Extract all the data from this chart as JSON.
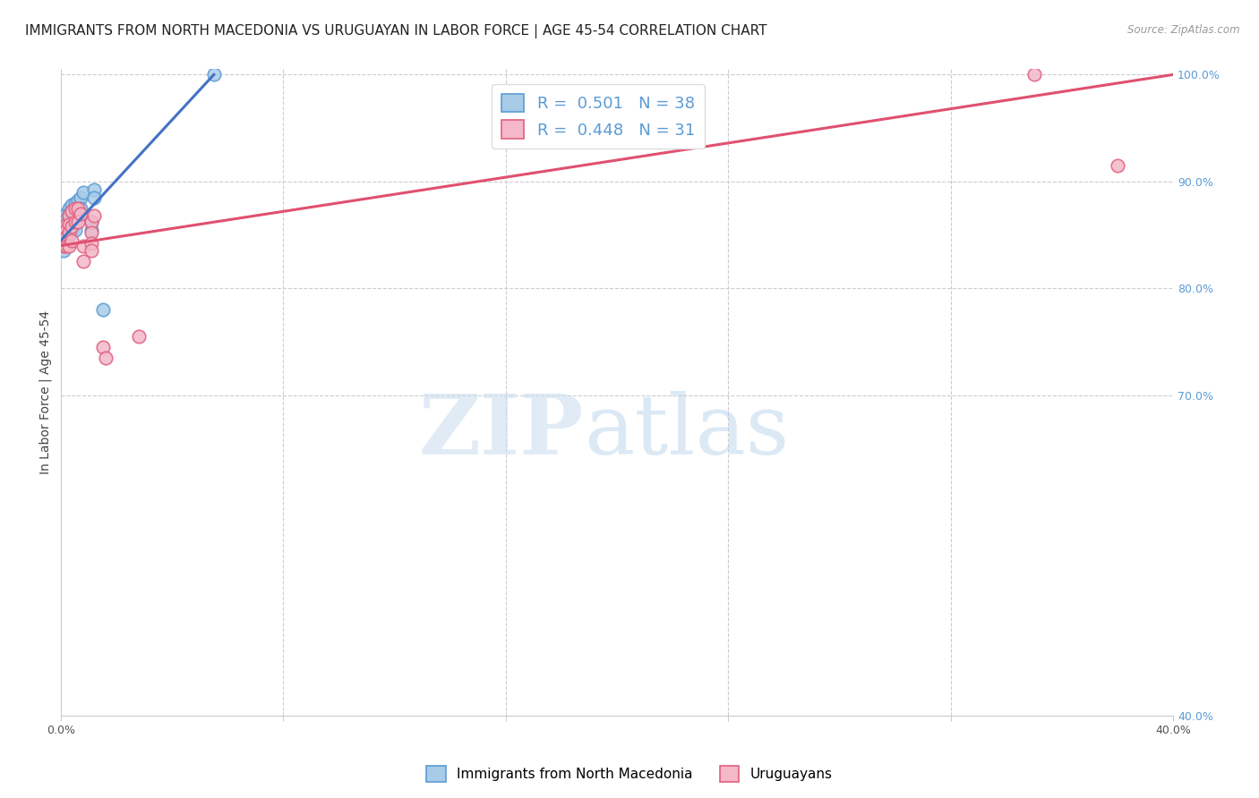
{
  "title": "IMMIGRANTS FROM NORTH MACEDONIA VS URUGUAYAN IN LABOR FORCE | AGE 45-54 CORRELATION CHART",
  "source": "Source: ZipAtlas.com",
  "ylabel": "In Labor Force | Age 45-54",
  "xlim": [
    0.0,
    0.4
  ],
  "ylim": [
    0.4,
    1.005
  ],
  "xticks": [
    0.0,
    0.08,
    0.16,
    0.24,
    0.32,
    0.4
  ],
  "xticklabels": [
    "0.0%",
    "",
    "",
    "",
    "",
    "40.0%"
  ],
  "yticks": [
    0.4,
    0.7,
    0.8,
    0.9,
    1.0
  ],
  "yticklabels": [
    "40.0%",
    "70.0%",
    "80.0%",
    "90.0%",
    "100.0%"
  ],
  "blue_R": 0.501,
  "blue_N": 38,
  "pink_R": 0.448,
  "pink_N": 31,
  "blue_color": "#a8cce8",
  "pink_color": "#f4b8c8",
  "blue_edge_color": "#5b9bd5",
  "pink_edge_color": "#e06080",
  "blue_line_color": "#4472c4",
  "pink_line_color": "#e05070",
  "blue_x": [
    0.001,
    0.001,
    0.001,
    0.001,
    0.001,
    0.001,
    0.001,
    0.002,
    0.002,
    0.002,
    0.002,
    0.002,
    0.002,
    0.002,
    0.003,
    0.003,
    0.003,
    0.003,
    0.003,
    0.003,
    0.004,
    0.004,
    0.004,
    0.004,
    0.005,
    0.005,
    0.005,
    0.006,
    0.006,
    0.007,
    0.007,
    0.008,
    0.011,
    0.011,
    0.012,
    0.012,
    0.015,
    0.055
  ],
  "blue_y": [
    0.86,
    0.855,
    0.85,
    0.848,
    0.845,
    0.842,
    0.835,
    0.87,
    0.865,
    0.86,
    0.857,
    0.853,
    0.85,
    0.845,
    0.875,
    0.87,
    0.865,
    0.86,
    0.855,
    0.85,
    0.878,
    0.872,
    0.865,
    0.855,
    0.88,
    0.87,
    0.855,
    0.882,
    0.87,
    0.885,
    0.875,
    0.89,
    0.862,
    0.855,
    0.892,
    0.885,
    0.78,
    1.0
  ],
  "pink_x": [
    0.001,
    0.001,
    0.001,
    0.002,
    0.002,
    0.002,
    0.002,
    0.003,
    0.003,
    0.003,
    0.003,
    0.004,
    0.004,
    0.004,
    0.005,
    0.005,
    0.006,
    0.006,
    0.007,
    0.008,
    0.008,
    0.011,
    0.011,
    0.011,
    0.011,
    0.012,
    0.015,
    0.016,
    0.028,
    0.35,
    0.38
  ],
  "pink_y": [
    0.855,
    0.848,
    0.84,
    0.86,
    0.855,
    0.848,
    0.84,
    0.868,
    0.86,
    0.852,
    0.84,
    0.872,
    0.858,
    0.845,
    0.875,
    0.862,
    0.875,
    0.862,
    0.87,
    0.84,
    0.825,
    0.862,
    0.852,
    0.842,
    0.835,
    0.868,
    0.745,
    0.735,
    0.755,
    1.0,
    0.915
  ],
  "blue_line_x0": 0.0,
  "blue_line_y0": 0.845,
  "blue_line_x1": 0.055,
  "blue_line_y1": 1.0,
  "pink_line_x0": 0.0,
  "pink_line_y0": 0.84,
  "pink_line_x1": 0.4,
  "pink_line_y1": 1.0,
  "watermark_zip": "ZIP",
  "watermark_atlas": "atlas",
  "grid_color": "#cccccc",
  "background_color": "#ffffff",
  "title_fontsize": 11,
  "axis_label_fontsize": 10,
  "tick_fontsize": 9,
  "right_tick_color": "#5b9bd5",
  "legend_r_color": "#5b9bd5",
  "legend_n_color": "#e05070"
}
